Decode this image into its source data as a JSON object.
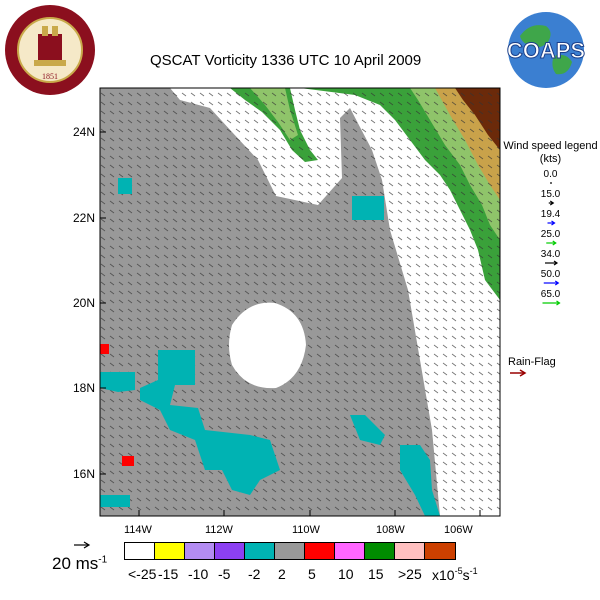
{
  "title": "QSCAT Vorticity 1336 UTC 10 April 2009",
  "logos": {
    "fsu_text": "FLORIDA STATE UNIVERSITY",
    "fsu_year": "1851",
    "coaps_text": "COAPS"
  },
  "axes": {
    "y_labels": [
      "24N",
      "22N",
      "20N",
      "18N",
      "16N"
    ],
    "x_labels": [
      "114W",
      "112W",
      "110W",
      "108W",
      "106W"
    ]
  },
  "legend": {
    "title": "Wind speed legend (kts)",
    "items": [
      {
        "value": "0.0",
        "color": "#000000"
      },
      {
        "value": "15.0",
        "color": "#000000"
      },
      {
        "value": "19.4",
        "color": "#0000ff"
      },
      {
        "value": "25.0",
        "color": "#00cc00"
      },
      {
        "value": "34.0",
        "color": "#000000"
      },
      {
        "value": "50.0",
        "color": "#0000ff"
      },
      {
        "value": "65.0",
        "color": "#00cc00"
      }
    ],
    "rain_flag": "Rain-Flag",
    "rain_flag_color": "#990000"
  },
  "scale": {
    "label": "20 ms",
    "exponent": "-1"
  },
  "colorbar": {
    "colors": [
      "#ffffff",
      "#ffff00",
      "#b38cf2",
      "#8c40f2",
      "#00b3b3",
      "#999999",
      "#ff0000",
      "#ff66ff",
      "#008c00",
      "#ffc0c0",
      "#cc4000"
    ],
    "labels": [
      "<-25",
      "-15",
      "-10",
      "-5",
      "-2",
      "2",
      "5",
      "10",
      "15",
      ">25"
    ],
    "unit": "x10",
    "unit_exp": "-5",
    "unit_suffix": "s",
    "unit_suffix_exp": "-1"
  }
}
